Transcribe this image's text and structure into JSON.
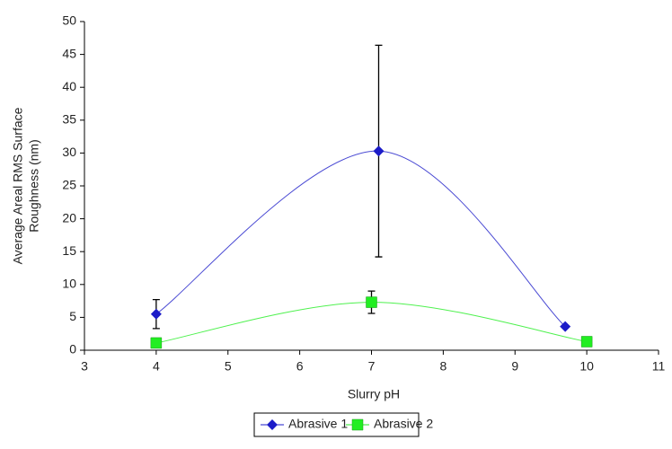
{
  "chart_data": {
    "type": "scatter",
    "xlabel": "Slurry pH",
    "ylabel": [
      "Average Areal RMS Surface",
      "Roughness (nm)"
    ],
    "xlim": [
      3,
      11
    ],
    "xticks": [
      3,
      4,
      5,
      6,
      7,
      8,
      9,
      10,
      11
    ],
    "ylim": [
      0,
      50
    ],
    "yticks": [
      0,
      5,
      10,
      15,
      20,
      25,
      30,
      35,
      40,
      45,
      50
    ],
    "smooth": true,
    "legend": "bottom",
    "series": [
      {
        "name": "Abrasive 1",
        "color": "#1c1cc8",
        "marker": "diamond",
        "x": [
          4,
          7.1,
          9.7
        ],
        "values": [
          5.5,
          30.3,
          3.6
        ],
        "errors": [
          2.2,
          16.1,
          null
        ]
      },
      {
        "name": "Abrasive 2",
        "color": "#22ee22",
        "marker": "square",
        "x": [
          4,
          7,
          10
        ],
        "values": [
          1.1,
          7.3,
          1.3
        ],
        "errors": [
          null,
          1.7,
          null
        ]
      }
    ]
  }
}
